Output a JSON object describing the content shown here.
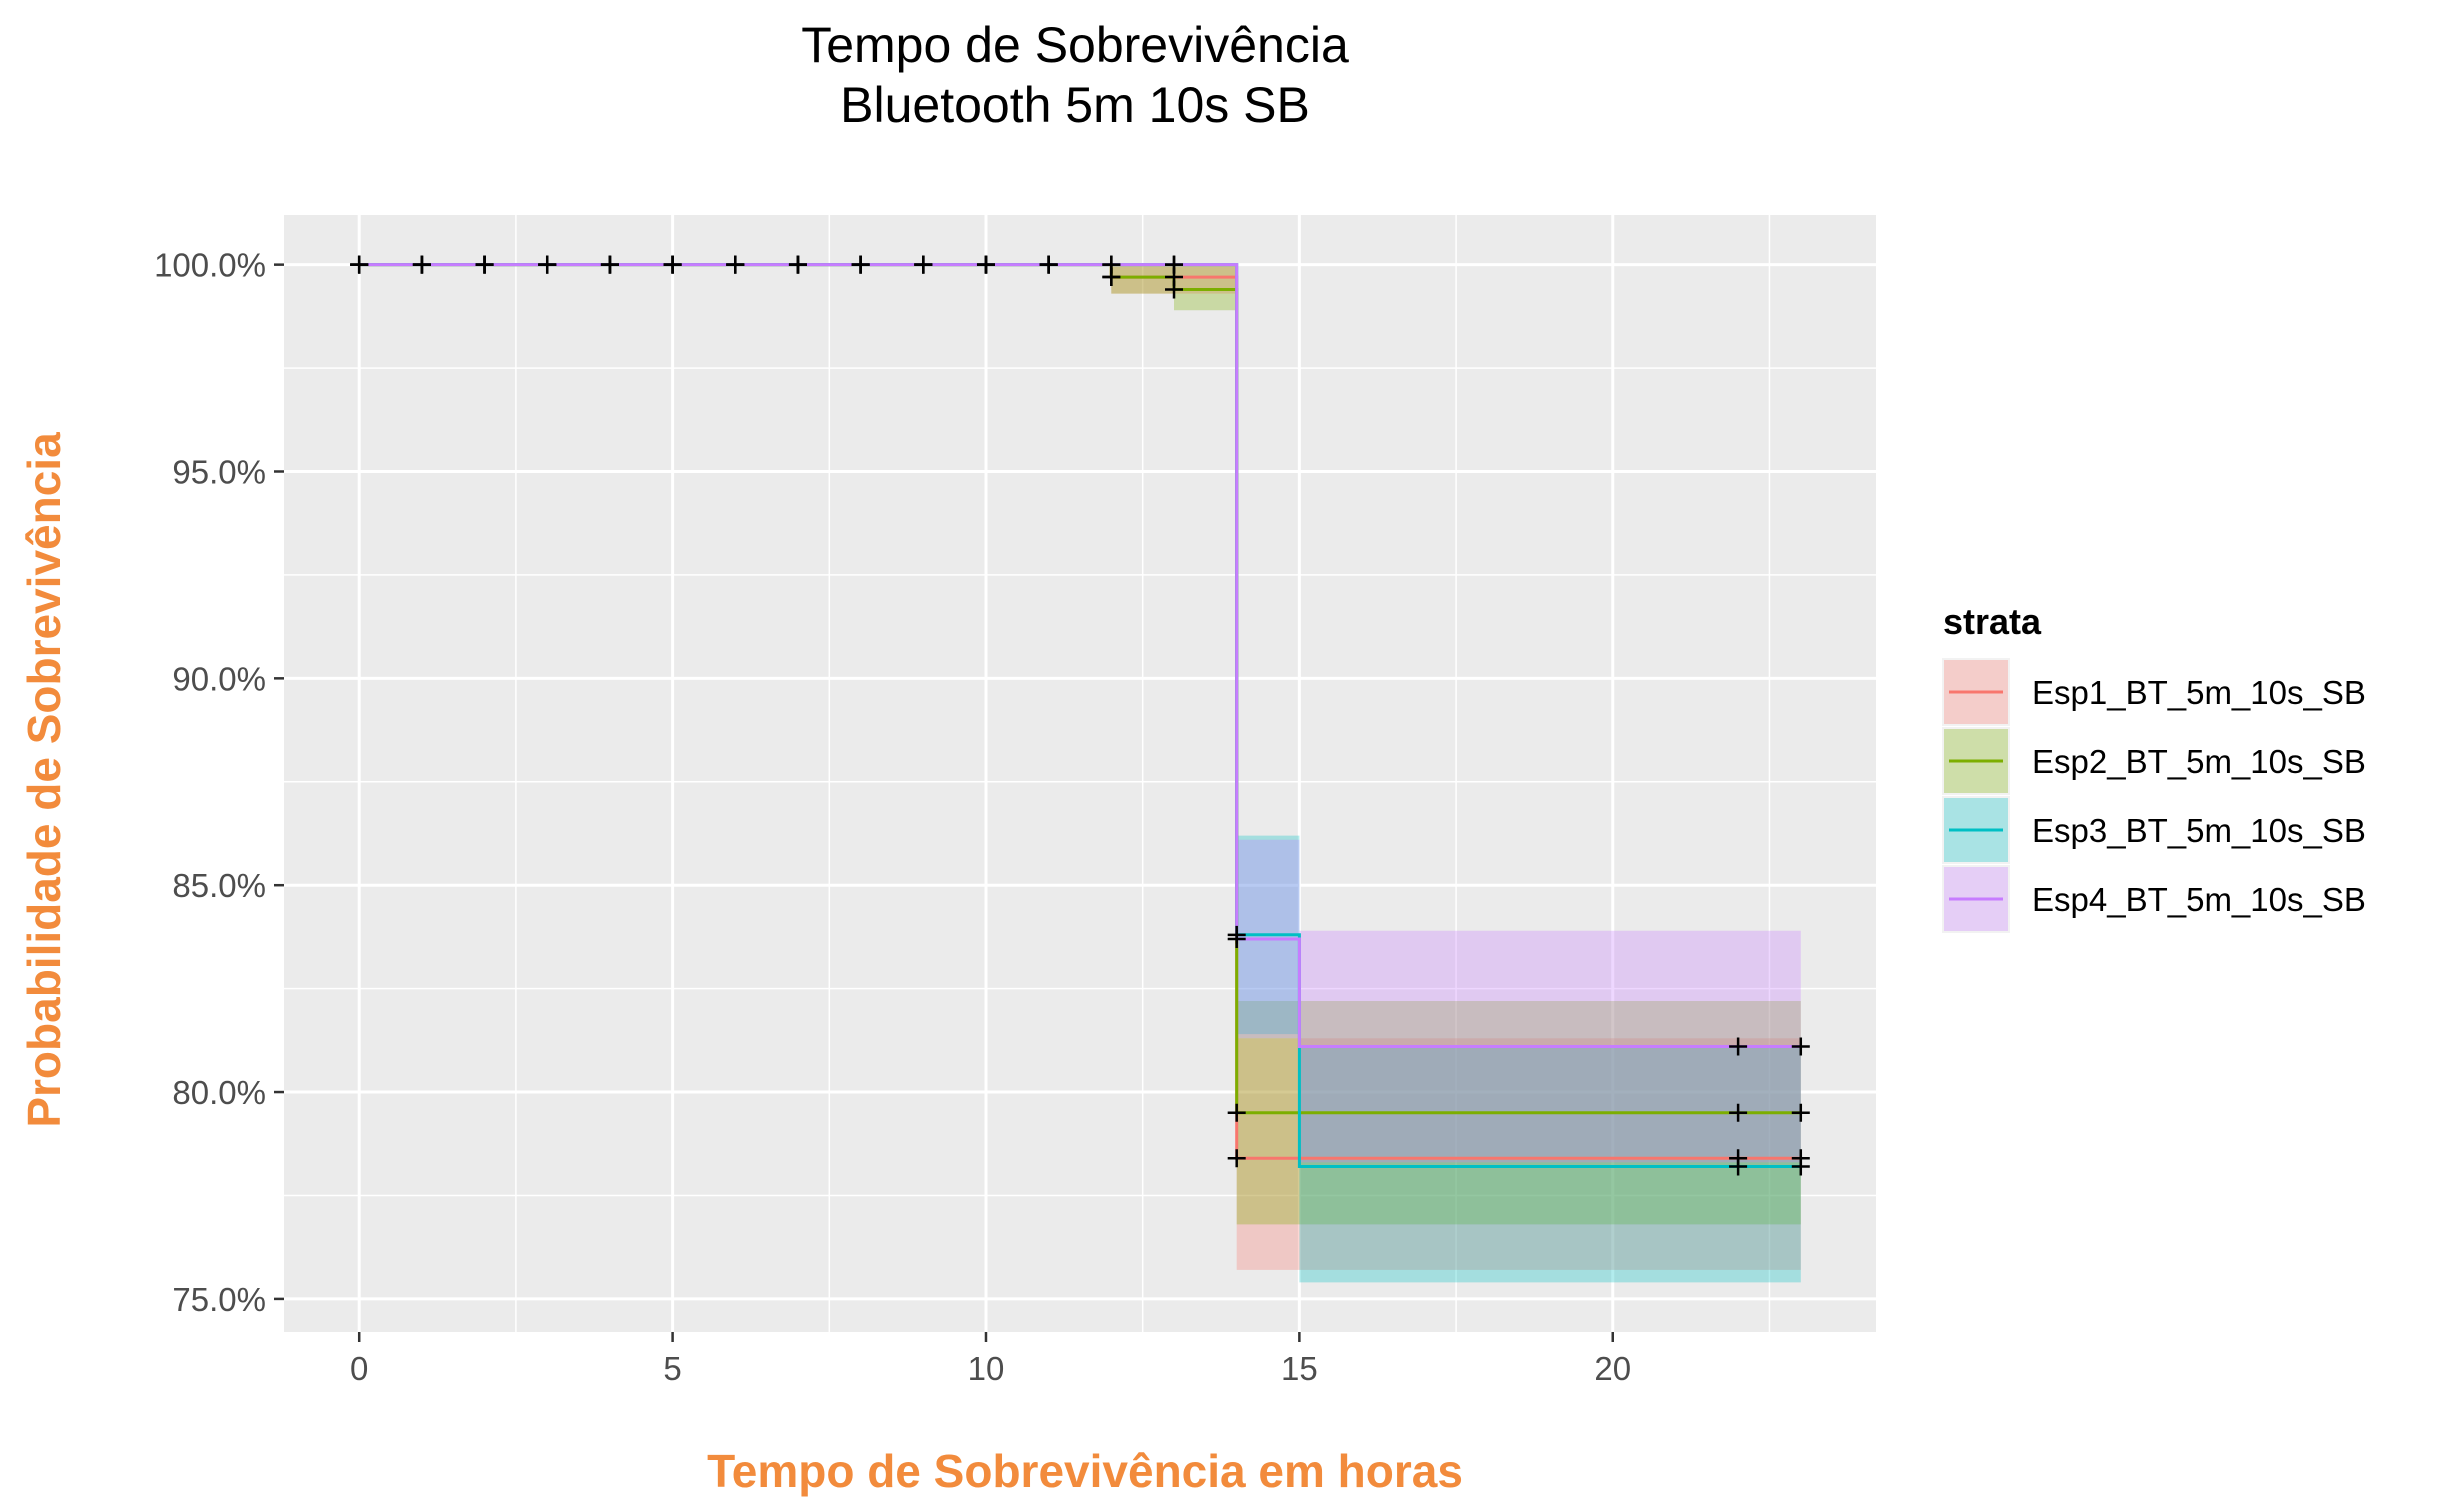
{
  "chart_data": {
    "type": "line",
    "subtype": "kaplan-meier-step",
    "title": "Tempo de Sobrevivência",
    "subtitle": "Bluetooth 5m 10s SB",
    "xlabel": "Tempo de Sobrevivência em horas",
    "ylabel": "Probabilidade de Sobrevivência",
    "xlim": [
      -1.2,
      24.2
    ],
    "ylim": [
      74.2,
      101.2
    ],
    "x_ticks": [
      0,
      5,
      10,
      15,
      20
    ],
    "x_tick_labels": [
      "0",
      "5",
      "10",
      "15",
      "20"
    ],
    "y_ticks": [
      75,
      80,
      85,
      90,
      95,
      100
    ],
    "y_tick_labels": [
      "75.0%",
      "80.0%",
      "85.0%",
      "90.0%",
      "95.0%",
      "100.0%"
    ],
    "grid": true,
    "panel_background": "#ebebeb",
    "legend": {
      "title": "strata",
      "position": "right"
    },
    "series": [
      {
        "name": "Esp1_BT_5m_10s_SB",
        "color": "#f8766d",
        "steps": [
          [
            0,
            100
          ],
          [
            12,
            99.7
          ],
          [
            14,
            78.4
          ],
          [
            23,
            78.4
          ]
        ],
        "band_upper": [
          [
            0,
            100
          ],
          [
            12,
            100
          ],
          [
            14,
            81.3
          ],
          [
            23,
            81.3
          ]
        ],
        "band_lower": [
          [
            0,
            100
          ],
          [
            12,
            99.3
          ],
          [
            14,
            75.7
          ],
          [
            23,
            75.7
          ]
        ],
        "censor_x": [
          0,
          1,
          2,
          3,
          4,
          5,
          6,
          7,
          8,
          9,
          10,
          11,
          12,
          13,
          14,
          22,
          23
        ]
      },
      {
        "name": "Esp2_BT_5m_10s_SB",
        "color": "#7cae00",
        "steps": [
          [
            0,
            100
          ],
          [
            12,
            99.7
          ],
          [
            13,
            99.4
          ],
          [
            14,
            79.5
          ],
          [
            23,
            79.5
          ]
        ],
        "band_upper": [
          [
            0,
            100
          ],
          [
            12,
            100
          ],
          [
            13,
            100
          ],
          [
            14,
            82.2
          ],
          [
            23,
            82.2
          ]
        ],
        "band_lower": [
          [
            0,
            100
          ],
          [
            12,
            99.3
          ],
          [
            13,
            98.9
          ],
          [
            14,
            76.8
          ],
          [
            23,
            76.8
          ]
        ],
        "censor_x": [
          0,
          1,
          2,
          3,
          4,
          5,
          6,
          7,
          8,
          9,
          10,
          11,
          12,
          13,
          14,
          22,
          23
        ]
      },
      {
        "name": "Esp3_BT_5m_10s_SB",
        "color": "#00bfc4",
        "steps": [
          [
            0,
            100
          ],
          [
            14,
            83.8
          ],
          [
            15,
            78.2
          ],
          [
            23,
            78.2
          ]
        ],
        "band_upper": [
          [
            0,
            100
          ],
          [
            14,
            86.2
          ],
          [
            15,
            81.1
          ],
          [
            23,
            81.1
          ]
        ],
        "band_lower": [
          [
            0,
            100
          ],
          [
            14,
            81.4
          ],
          [
            15,
            75.4
          ],
          [
            23,
            75.4
          ]
        ],
        "censor_x": [
          0,
          1,
          2,
          3,
          4,
          5,
          6,
          7,
          8,
          9,
          10,
          11,
          12,
          13,
          14,
          22,
          23
        ]
      },
      {
        "name": "Esp4_BT_5m_10s_SB",
        "color": "#c77cff",
        "steps": [
          [
            0,
            100
          ],
          [
            14,
            83.7
          ],
          [
            15,
            81.1
          ],
          [
            23,
            81.1
          ]
        ],
        "band_upper": [
          [
            0,
            100
          ],
          [
            14,
            86.1
          ],
          [
            15,
            83.9
          ],
          [
            23,
            83.9
          ]
        ],
        "band_lower": [
          [
            0,
            100
          ],
          [
            14,
            81.3
          ],
          [
            15,
            78.3
          ],
          [
            23,
            78.3
          ]
        ],
        "censor_x": [
          0,
          1,
          2,
          3,
          4,
          5,
          6,
          7,
          8,
          9,
          10,
          11,
          12,
          13,
          14,
          22,
          23
        ]
      }
    ]
  }
}
